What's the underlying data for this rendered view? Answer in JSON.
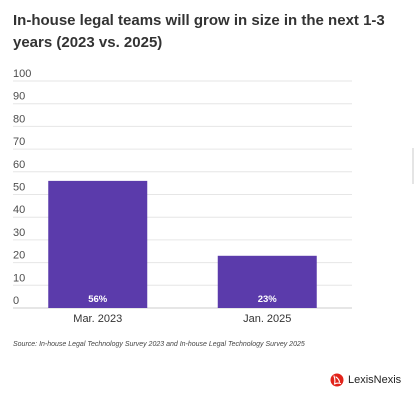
{
  "title": "In-house legal teams will grow in size in the next 1-3 years (2023 vs. 2025)",
  "source": "Source: In-house Legal Technology Survey 2023 and In-house Legal Technology Survey 2025",
  "brand": {
    "name": "LexisNexis",
    "logo_icon": "lexisnexis-logo-icon",
    "logo_color": "#e2231a"
  },
  "chart_data": {
    "type": "bar",
    "categories": [
      "Mar. 2023",
      "Jan. 2025"
    ],
    "values": [
      56,
      23
    ],
    "data_labels": [
      "56%",
      "23%"
    ],
    "ylim": [
      0,
      100
    ],
    "yticks": [
      0,
      10,
      20,
      30,
      40,
      50,
      60,
      70,
      80,
      90,
      100
    ],
    "bar_color": "#5b3bab",
    "grid": true
  }
}
